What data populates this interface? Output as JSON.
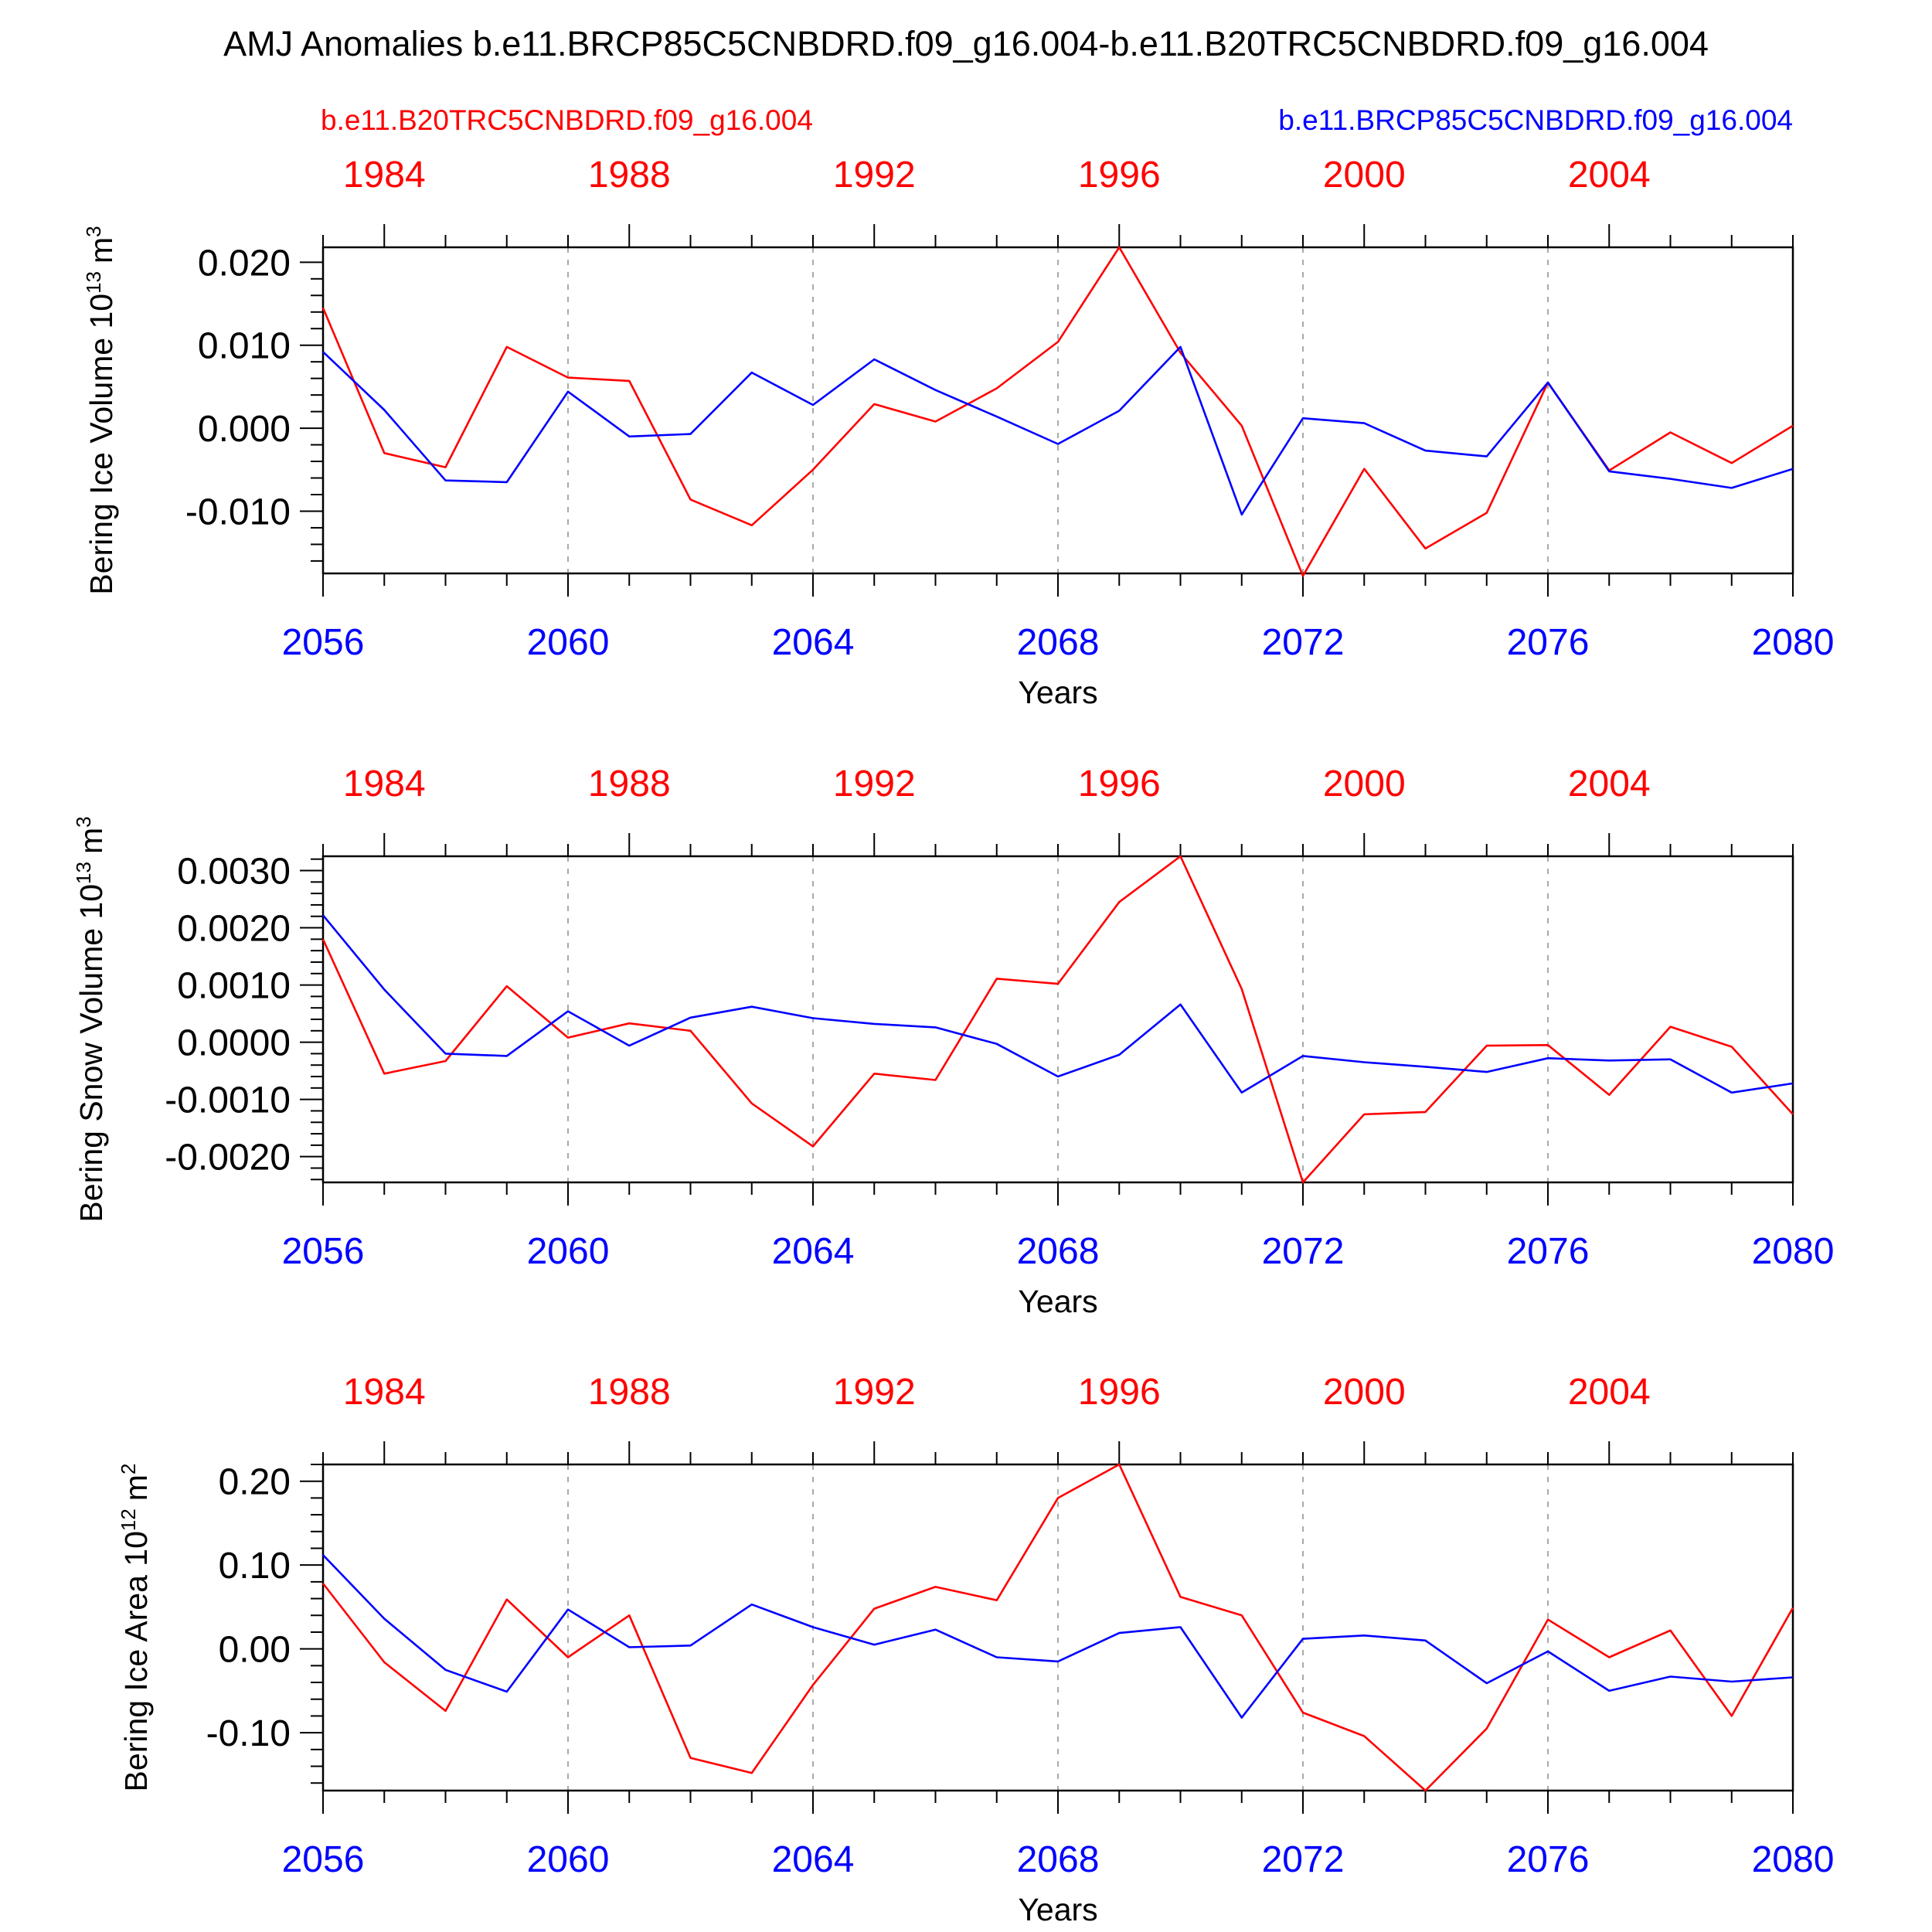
{
  "page_title": "AMJ Anomalies b.e11.BRCP85C5CNBDRD.f09_g16.004-b.e11.B20TRC5CNBDRD.f09_g16.004",
  "legend": {
    "left": {
      "label": "b.e11.B20TRC5CNBDRD.f09_g16.004",
      "color": "#ff0000"
    },
    "right": {
      "label": "b.e11.BRCP85C5CNBDRD.f09_g16.004",
      "color": "#0000ff"
    }
  },
  "colors": {
    "historical": "#ff0000",
    "future": "#0000ff",
    "axis": "#000000",
    "grid": "#aaaaaa"
  },
  "chart_data": [
    {
      "type": "line",
      "ylabel": "Bering Ice Volume 10",
      "ylabel_exp": "13",
      "ylabel_unit": "m",
      "ylabel_unit_exp": "3",
      "xlabel": "Years",
      "xlim": [
        2056,
        2080
      ],
      "ylim": [
        -0.0175,
        0.0218
      ],
      "yticks": [
        0.02,
        0.01,
        0.0,
        -0.01
      ],
      "ytick_labels": [
        "0.020",
        "0.010",
        "0.000",
        "-0.010"
      ],
      "x_ticks": [
        2056,
        2060,
        2064,
        2068,
        2072,
        2076,
        2080
      ],
      "x_tick_labels": [
        "2056",
        "2060",
        "2064",
        "2068",
        "2072",
        "2076",
        "2080"
      ],
      "top_ticks": [
        1984,
        1988,
        1992,
        1996,
        2000,
        2004
      ],
      "top_tick_labels": [
        "1984",
        "1988",
        "1992",
        "1996",
        "2000",
        "2004"
      ],
      "top_offset": 73,
      "x": [
        2056,
        2057,
        2058,
        2059,
        2060,
        2061,
        2062,
        2063,
        2064,
        2065,
        2066,
        2067,
        2068,
        2069,
        2070,
        2071,
        2072,
        2073,
        2074,
        2075,
        2076,
        2077,
        2078,
        2079,
        2080
      ],
      "series": [
        {
          "name": "b.e11.B20TRC5CNBDRD.f09_g16.004",
          "color": "#ff0000",
          "values": [
            0.0145,
            -0.003,
            -0.0047,
            0.0098,
            0.0061,
            0.0057,
            -0.0086,
            -0.0117,
            -0.005,
            0.0029,
            0.0008,
            0.0048,
            0.0104,
            0.0218,
            0.0091,
            0.0003,
            -0.0178,
            -0.0049,
            -0.0145,
            -0.0102,
            0.0055,
            -0.0051,
            -0.0005,
            -0.0042,
            0.0003
          ]
        },
        {
          "name": "b.e11.BRCP85C5CNBDRD.f09_g16.004",
          "color": "#0000ff",
          "values": [
            0.0092,
            0.0022,
            -0.0063,
            -0.0065,
            0.0044,
            -0.001,
            -0.0007,
            0.0067,
            0.0028,
            0.0083,
            0.0046,
            0.0014,
            -0.0019,
            0.0021,
            0.0098,
            -0.0104,
            0.0012,
            0.0006,
            -0.0027,
            -0.0034,
            0.0055,
            -0.0052,
            -0.0061,
            -0.0072,
            -0.0049
          ]
        }
      ]
    },
    {
      "type": "line",
      "ylabel": "Bering Snow Volume 10",
      "ylabel_exp": "13",
      "ylabel_unit": "m",
      "ylabel_unit_exp": "3",
      "xlabel": "Years",
      "xlim": [
        2056,
        2080
      ],
      "ylim": [
        -0.00245,
        0.00325
      ],
      "yticks": [
        0.003,
        0.002,
        0.001,
        0.0,
        -0.001,
        -0.002
      ],
      "ytick_labels": [
        "0.0030",
        "0.0020",
        "0.0010",
        "0.0000",
        "-0.0010",
        "-0.0020"
      ],
      "x_ticks": [
        2056,
        2060,
        2064,
        2068,
        2072,
        2076,
        2080
      ],
      "x_tick_labels": [
        "2056",
        "2060",
        "2064",
        "2068",
        "2072",
        "2076",
        "2080"
      ],
      "top_ticks": [
        1984,
        1988,
        1992,
        1996,
        2000,
        2004
      ],
      "top_tick_labels": [
        "1984",
        "1988",
        "1992",
        "1996",
        "2000",
        "2004"
      ],
      "top_offset": 73,
      "x": [
        2056,
        2057,
        2058,
        2059,
        2060,
        2061,
        2062,
        2063,
        2064,
        2065,
        2066,
        2067,
        2068,
        2069,
        2070,
        2071,
        2072,
        2073,
        2074,
        2075,
        2076,
        2077,
        2078,
        2079,
        2080
      ],
      "series": [
        {
          "name": "b.e11.B20TRC5CNBDRD.f09_g16.004",
          "color": "#ff0000",
          "values": [
            0.0018,
            -0.00055,
            -0.00033,
            0.00098,
            8e-05,
            0.00033,
            0.0002,
            -0.00107,
            -0.00182,
            -0.00055,
            -0.00066,
            0.00111,
            0.00102,
            0.00245,
            0.00325,
            0.00093,
            -0.00245,
            -0.00126,
            -0.00122,
            -6e-05,
            -5e-05,
            -0.00092,
            0.00027,
            -8e-05,
            -0.00126
          ]
        },
        {
          "name": "b.e11.BRCP85C5CNBDRD.f09_g16.004",
          "color": "#0000ff",
          "values": [
            0.00222,
            0.00092,
            -0.0002,
            -0.00024,
            0.00054,
            -6e-05,
            0.00043,
            0.00062,
            0.00042,
            0.00032,
            0.00026,
            -3e-05,
            -0.0006,
            -0.00022,
            0.00066,
            -0.00088,
            -0.00024,
            -0.00035,
            -0.00043,
            -0.00052,
            -0.00028,
            -0.00032,
            -0.0003,
            -0.00088,
            -0.00072
          ]
        }
      ]
    },
    {
      "type": "line",
      "ylabel": "Bering Ice Area 10",
      "ylabel_exp": "12",
      "ylabel_unit": "m",
      "ylabel_unit_exp": "2",
      "xlabel": "Years",
      "xlim": [
        2056,
        2080
      ],
      "ylim": [
        -0.169,
        0.22
      ],
      "yticks": [
        0.2,
        0.1,
        0.0,
        -0.1
      ],
      "ytick_labels": [
        "0.20",
        "0.10",
        "0.00",
        "-0.10"
      ],
      "x_ticks": [
        2056,
        2060,
        2064,
        2068,
        2072,
        2076,
        2080
      ],
      "x_tick_labels": [
        "2056",
        "2060",
        "2064",
        "2068",
        "2072",
        "2076",
        "2080"
      ],
      "top_ticks": [
        1984,
        1988,
        1992,
        1996,
        2000,
        2004
      ],
      "top_tick_labels": [
        "1984",
        "1988",
        "1992",
        "1996",
        "2000",
        "2004"
      ],
      "top_offset": 73,
      "x": [
        2056,
        2057,
        2058,
        2059,
        2060,
        2061,
        2062,
        2063,
        2064,
        2065,
        2066,
        2067,
        2068,
        2069,
        2070,
        2071,
        2072,
        2073,
        2074,
        2075,
        2076,
        2077,
        2078,
        2079,
        2080
      ],
      "series": [
        {
          "name": "b.e11.B20TRC5CNBDRD.f09_g16.004",
          "color": "#ff0000",
          "values": [
            0.078,
            -0.016,
            -0.074,
            0.059,
            -0.01,
            0.04,
            -0.13,
            -0.148,
            -0.043,
            0.048,
            0.074,
            0.058,
            0.18,
            0.22,
            0.062,
            0.04,
            -0.076,
            -0.104,
            -0.169,
            -0.095,
            0.035,
            -0.01,
            0.022,
            -0.08,
            0.049
          ]
        },
        {
          "name": "b.e11.BRCP85C5CNBDRD.f09_g16.004",
          "color": "#0000ff",
          "values": [
            0.112,
            0.036,
            -0.025,
            -0.051,
            0.047,
            0.002,
            0.004,
            0.053,
            0.026,
            0.005,
            0.023,
            -0.01,
            -0.015,
            0.019,
            0.026,
            -0.082,
            0.012,
            0.016,
            0.01,
            -0.041,
            -0.003,
            -0.05,
            -0.033,
            -0.039,
            -0.034
          ]
        }
      ]
    }
  ]
}
